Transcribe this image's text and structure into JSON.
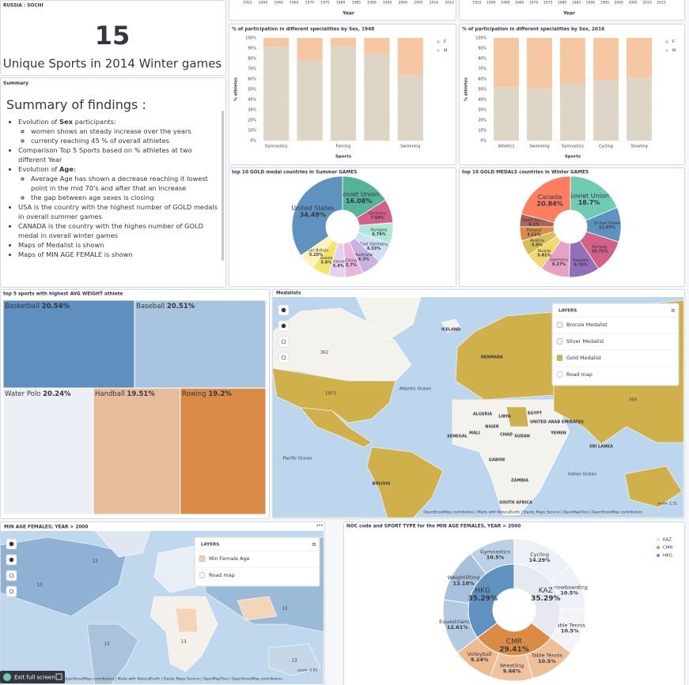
{
  "metric": {
    "title": "RUSSIA : SOCHI",
    "value": 15,
    "label": "Unique Sports in 2014 Winter games"
  },
  "summary": {
    "title": "Summary",
    "heading": "Summary of findings :",
    "items": [
      {
        "pre": "Evolution of ",
        "bold": "Sex",
        "post": " participants:",
        "sub": [
          "women shows an steady increase over the years",
          "currenty reaching 45 % of overall athletes"
        ]
      },
      {
        "text": "Comparison Top 5 Sports based on % athletes at two different Year"
      },
      {
        "pre": "Evolution of ",
        "bold": "Age",
        "post": ":",
        "sub": [
          "Average Age has shown a decrease reaching it lowest point in the mid 70's and after that an increase",
          "the gap between age sexes is closing"
        ]
      },
      {
        "text": "USA is the country with the highest number of GOLD medals in overall summer games"
      },
      {
        "text": "CANADA is the country with the highes number of GOLD medal in overall winter games"
      },
      {
        "text": "Maps of Medalist is shown"
      },
      {
        "text": "Maps of MIN AGE FEMALE is shown"
      }
    ]
  },
  "chart_data": [
    {
      "type": "axis-strip",
      "xlabel": "Year",
      "categories": [
        "1952",
        "1956",
        "1960",
        "1965",
        "1970",
        "1975",
        "1980",
        "1985",
        "1990",
        "1995",
        "2000",
        "2005",
        "2010",
        "2015"
      ]
    },
    {
      "type": "axis-strip",
      "xlabel": "Year",
      "categories": [
        "1952",
        "1956",
        "1960",
        "1965",
        "1970",
        "1975",
        "1980",
        "1985",
        "1990",
        "1995",
        "2000",
        "2005",
        "2010",
        "2015"
      ]
    },
    {
      "type": "bar",
      "stacked": true,
      "title": "% of participation in different specialities by Sex, 1948",
      "categories": [
        "Gymnastics",
        null,
        "Fencing",
        null,
        "Swimming"
      ],
      "series": [
        {
          "name": "F",
          "color": "#f5c8a3",
          "values": [
            9,
            22,
            8,
            16,
            36
          ]
        },
        {
          "name": "M",
          "color": "#ddd6c7",
          "values": [
            91,
            78,
            92,
            84,
            64
          ]
        }
      ],
      "xlabel": "Sports",
      "ylabel": "% athletes",
      "ylim": [
        0,
        100
      ],
      "yticks": [
        {
          "value": 0,
          "label": "0%"
        },
        {
          "value": 10,
          "label": "10%"
        },
        {
          "value": 20,
          "label": "20%"
        },
        {
          "value": 30,
          "label": "30%"
        },
        {
          "value": 40,
          "label": "40%"
        },
        {
          "value": 50,
          "label": "50%"
        },
        {
          "value": 60,
          "label": "60%"
        },
        {
          "value": 70,
          "label": "70%"
        },
        {
          "value": 80,
          "label": "80%"
        },
        {
          "value": 90,
          "label": "90%"
        },
        {
          "value": 100,
          "label": "100%"
        }
      ],
      "grid": true,
      "legend": "top-right"
    },
    {
      "type": "bar",
      "stacked": true,
      "title": "% of participation in different specialities by Sex, 2016",
      "categories": [
        "Athletics",
        "Swimming",
        "Gymnastics",
        "Cycling",
        "Shooting"
      ],
      "series": [
        {
          "name": "F",
          "color": "#f5c8a3",
          "values": [
            48,
            49,
            45,
            41,
            39
          ]
        },
        {
          "name": "M",
          "color": "#ddd6c7",
          "values": [
            52,
            51,
            55,
            59,
            61
          ]
        }
      ],
      "xlabel": "Sports",
      "ylabel": "% athletes",
      "ylim": [
        0,
        100
      ],
      "yticks": [
        {
          "value": 0,
          "label": "0%"
        },
        {
          "value": 10,
          "label": "10%"
        },
        {
          "value": 20,
          "label": "20%"
        },
        {
          "value": 30,
          "label": "30%"
        },
        {
          "value": 40,
          "label": "40%"
        },
        {
          "value": 50,
          "label": "50%"
        },
        {
          "value": 60,
          "label": "60%"
        },
        {
          "value": 70,
          "label": "70%"
        },
        {
          "value": 80,
          "label": "80%"
        },
        {
          "value": 90,
          "label": "90%"
        },
        {
          "value": 100,
          "label": "100%"
        }
      ],
      "grid": true,
      "legend": "top-right"
    },
    {
      "type": "pie",
      "donut": true,
      "title": "top 10 GOLD medal countries in Summer GAMES",
      "categories": [
        "Soviet Union",
        "Germany",
        "Hungary",
        "East Germany",
        "Australia",
        "China",
        "France",
        "Russia",
        "Great Britain",
        "United States"
      ],
      "values": [
        16.08,
        7.54,
        6.74,
        6.53,
        6.3,
        5.7,
        5.4,
        5.6,
        5.25,
        34.49
      ],
      "value_labels": [
        "16.08%",
        "7.54%",
        "6.74%",
        "6.53%",
        "6.3%",
        "5.7%",
        "5.4%",
        "5.6%",
        "5.25%",
        "34.49%"
      ],
      "colors": [
        "#54b399",
        "#d36086",
        "#b0e9d8",
        "#cfe0f2",
        "#c9b2e3",
        "#e9b6dc",
        "#e4d2f0",
        "#f6e36b",
        "#fdf3b8",
        "#6092c0"
      ]
    },
    {
      "type": "pie",
      "donut": true,
      "title": "top 10 GOLD MEDALS countries in Winter GAMES",
      "categories": [
        "Soviet Union",
        "United States",
        "Norway",
        "Sweden",
        "Germany",
        "Russia",
        "Austria",
        "Finland",
        "South Korea",
        "Canada"
      ],
      "values": [
        18.7,
        11.07,
        10.75,
        9.76,
        9.27,
        5.81,
        5.0,
        4.51,
        4.1,
        20.84
      ],
      "value_labels": [
        "18.7%",
        "11.07%",
        "10.75%",
        "9.76%",
        "9.27%",
        "5.81%",
        "5.0%",
        "4.51%",
        "4.1%",
        "20.84%"
      ],
      "colors": [
        "#6dccb1",
        "#6092c0",
        "#d36086",
        "#9170b8",
        "#e7a1c4",
        "#f1d86f",
        "#d6bf57",
        "#da8b45",
        "#aa6556",
        "#ff7e62"
      ]
    },
    {
      "type": "treemap",
      "title": "top 5 sports with highest AVG WEIGHT athlete",
      "categories": [
        "Basketball",
        "Baseball",
        "Water Polo",
        "Handball",
        "Rowing"
      ],
      "values": [
        20.54,
        20.51,
        20.24,
        19.51,
        19.2
      ],
      "value_labels": [
        "20.54%",
        "20.51%",
        "20.24%",
        "19.51%",
        "19.2%"
      ],
      "colors": [
        "#5e8fbe",
        "#a9c4de",
        "#eceff5",
        "#e6bc9a",
        "#da8b45"
      ]
    },
    {
      "type": "sunburst",
      "title": "NOC code and SPORT TYPE for the MIN AGE FEMALES, YEAR > 2000",
      "legend": "top-right",
      "groups": [
        {
          "name": "KAZ",
          "color": "#e6eaf0",
          "value": 35.29,
          "value_label": "35.29%",
          "children": [
            {
              "name": "Cycling",
              "color": "#edf0f4",
              "value": 14.29,
              "value_label": "14.29%"
            },
            {
              "name": "Snowboarding",
              "color": "#eef1f5",
              "value": 10.5,
              "value_label": "10.5%"
            },
            {
              "name": "Table Tennis",
              "color": "#f2f4f7",
              "value": 10.5,
              "value_label": "10.5%"
            }
          ]
        },
        {
          "name": "CMR",
          "color": "#da8b45",
          "value": 29.41,
          "value_label": "29.41%",
          "children": [
            {
              "name": "Table Tennis",
              "color": "#efbf97",
              "value": 10.5,
              "value_label": "10.5%"
            },
            {
              "name": "Wrestling",
              "color": "#f0c39e",
              "value": 9.66,
              "value_label": "9.66%"
            },
            {
              "name": "Volleyball",
              "color": "#eebb91",
              "value": 9.24,
              "value_label": "9.24%"
            }
          ]
        },
        {
          "name": "HKG",
          "color": "#6092c0",
          "value": 35.29,
          "value_label": "35.29%",
          "children": [
            {
              "name": "Equestrianism",
              "color": "#b3cbe2",
              "value": 12.61,
              "value_label": "12.61%"
            },
            {
              "name": "Weightlifting",
              "color": "#a7c1dc",
              "value": 12.18,
              "value_label": "12.18%"
            },
            {
              "name": "Gymnastics",
              "color": "#bdd1e6",
              "value": 10.5,
              "value_label": "10.5%"
            }
          ]
        }
      ]
    }
  ],
  "maps": [
    {
      "title": "Medalists",
      "labels": [
        "362",
        "1971",
        "ICELAND",
        "DENMARK",
        "ALGERIA",
        "LIBYA",
        "EGYPT",
        "UNITED ARAB EMIRATES",
        "MALI",
        "NIGER",
        "CHAD",
        "SUDAN",
        "SENEGAL",
        "YEMEN",
        "GABON",
        "ZAMBIA",
        "SOUTH AFRICA",
        "SRI LANKA",
        "BOLIVIA",
        "350",
        "Pacific Ocean",
        "Atlantic Ocean",
        "Indian Ocean"
      ],
      "layers": {
        "title": "LAYERS",
        "items": [
          "Bronze Medalist",
          "Silver Medalist",
          "Gold Medalist",
          "Road map"
        ]
      },
      "attribution": "OpenStreetMap contributors | Made with NaturalEarth | Elastic Maps Service | OpenMapTiles | OpenStreetMap contributors",
      "zoom": "zoom: 1.51"
    },
    {
      "title": "MIN AGE FEMALES; YEAR > 2000",
      "labels": [
        "13",
        "13",
        "13",
        "13",
        "13",
        "13",
        "13"
      ],
      "layers": {
        "title": "LAYERS",
        "items": [
          "Min Female Age",
          "Road map"
        ]
      },
      "attribution": "OpenStreetMap contributors | Made with NaturalEarth | Elastic Maps Service | OpenMapTiles | OpenStreetMap contributors",
      "zoom": "zoom: 0.95"
    }
  ],
  "exit_button": "Exit full screen"
}
